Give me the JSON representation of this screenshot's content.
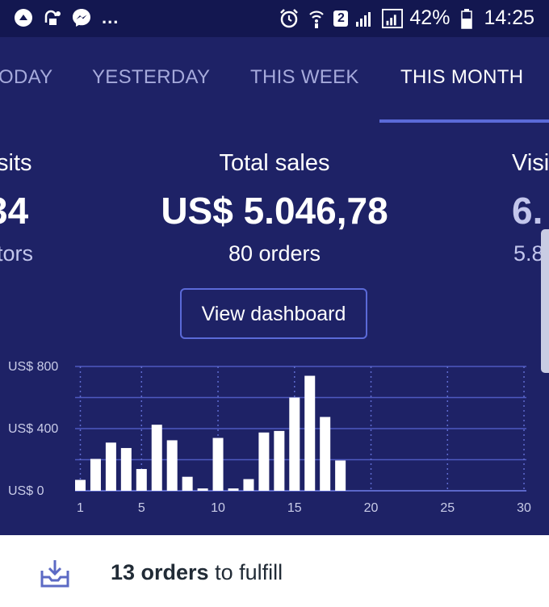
{
  "status_bar": {
    "icons_left": [
      "app-icon",
      "data-icon",
      "messenger-icon"
    ],
    "more_indicator": "...",
    "sim_slot": "2",
    "battery": "42%",
    "time": "14:25"
  },
  "tabs": [
    {
      "label": "ODAY"
    },
    {
      "label": "YESTERDAY"
    },
    {
      "label": "THIS WEEK"
    },
    {
      "label": "THIS MONTH",
      "active": true
    }
  ],
  "stats": {
    "left": {
      "label": "sits",
      "value": "34",
      "sub": "tors"
    },
    "center": {
      "label": "Total sales",
      "value": "US$ 5.046,78",
      "sub": "80 orders"
    },
    "right": {
      "label": "Visi",
      "value": "6.",
      "sub": "5.8"
    }
  },
  "view_dashboard_label": "View dashboard",
  "chart_data": {
    "type": "bar",
    "title": "",
    "xlabel": "",
    "ylabel": "",
    "x": [
      1,
      2,
      3,
      4,
      5,
      6,
      7,
      8,
      9,
      10,
      11,
      12,
      13,
      14,
      15,
      16,
      17,
      18,
      19,
      20,
      21,
      22,
      23,
      24,
      25,
      26,
      27,
      28,
      29,
      30
    ],
    "values": [
      70,
      205,
      310,
      275,
      140,
      425,
      325,
      90,
      15,
      340,
      15,
      75,
      375,
      385,
      600,
      740,
      475,
      195,
      0,
      0,
      0,
      0,
      0,
      0,
      0,
      0,
      0,
      0,
      0,
      0
    ],
    "x_tick_labels": [
      "1",
      "5",
      "10",
      "15",
      "20",
      "25",
      "30"
    ],
    "y_tick_labels": [
      "US$ 0",
      "US$ 400",
      "US$ 800"
    ],
    "ylim": [
      0,
      800
    ],
    "grid": true,
    "bar_color": "#ffffff"
  },
  "fulfill": {
    "count_text": "13 orders",
    "rest_text": " to fulfill",
    "icon": "inbox-download-icon"
  },
  "colors": {
    "background": "#1e2266",
    "status_bar": "#131750",
    "accent": "#5b6ad8"
  }
}
